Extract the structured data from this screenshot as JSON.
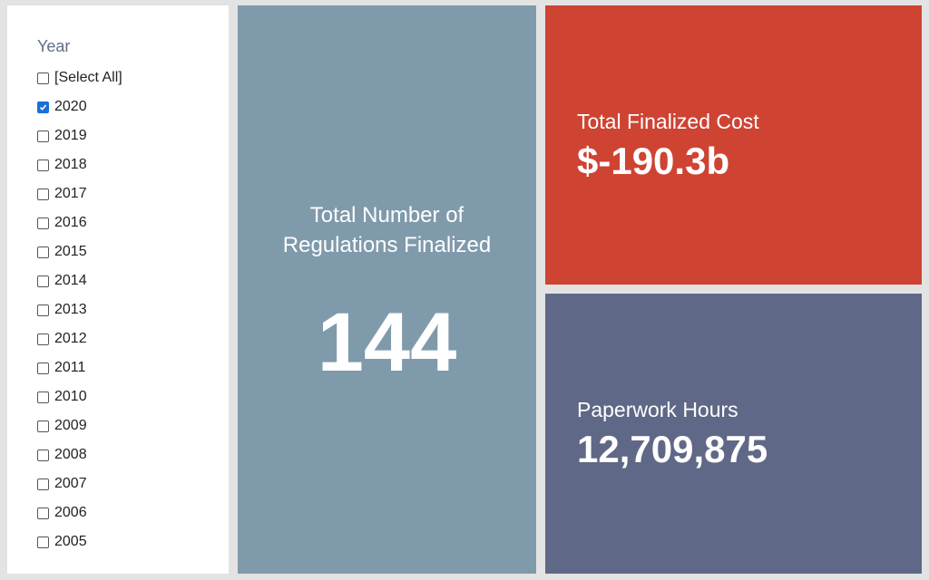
{
  "filter": {
    "title": "Year",
    "items": [
      {
        "label": "[Select All]",
        "checked": false
      },
      {
        "label": "2020",
        "checked": true
      },
      {
        "label": "2019",
        "checked": false
      },
      {
        "label": "2018",
        "checked": false
      },
      {
        "label": "2017",
        "checked": false
      },
      {
        "label": "2016",
        "checked": false
      },
      {
        "label": "2015",
        "checked": false
      },
      {
        "label": "2014",
        "checked": false
      },
      {
        "label": "2013",
        "checked": false
      },
      {
        "label": "2012",
        "checked": false
      },
      {
        "label": "2011",
        "checked": false
      },
      {
        "label": "2010",
        "checked": false
      },
      {
        "label": "2009",
        "checked": false
      },
      {
        "label": "2008",
        "checked": false
      },
      {
        "label": "2007",
        "checked": false
      },
      {
        "label": "2006",
        "checked": false
      },
      {
        "label": "2005",
        "checked": false
      }
    ]
  },
  "tiles": {
    "regulations": {
      "label": "Total Number of Regulations Finalized",
      "value": "144",
      "color": "#7f9aab"
    },
    "cost": {
      "label": "Total Finalized Cost",
      "value": "$-190.3b",
      "color": "#cf4333"
    },
    "hours": {
      "label": "Paperwork Hours",
      "value": "12,709,875",
      "color": "#5f6886"
    }
  },
  "colors": {
    "background": "#e3e3e3",
    "checkbox_checked": "#1a6fd8",
    "filter_title": "#5f6f88"
  }
}
